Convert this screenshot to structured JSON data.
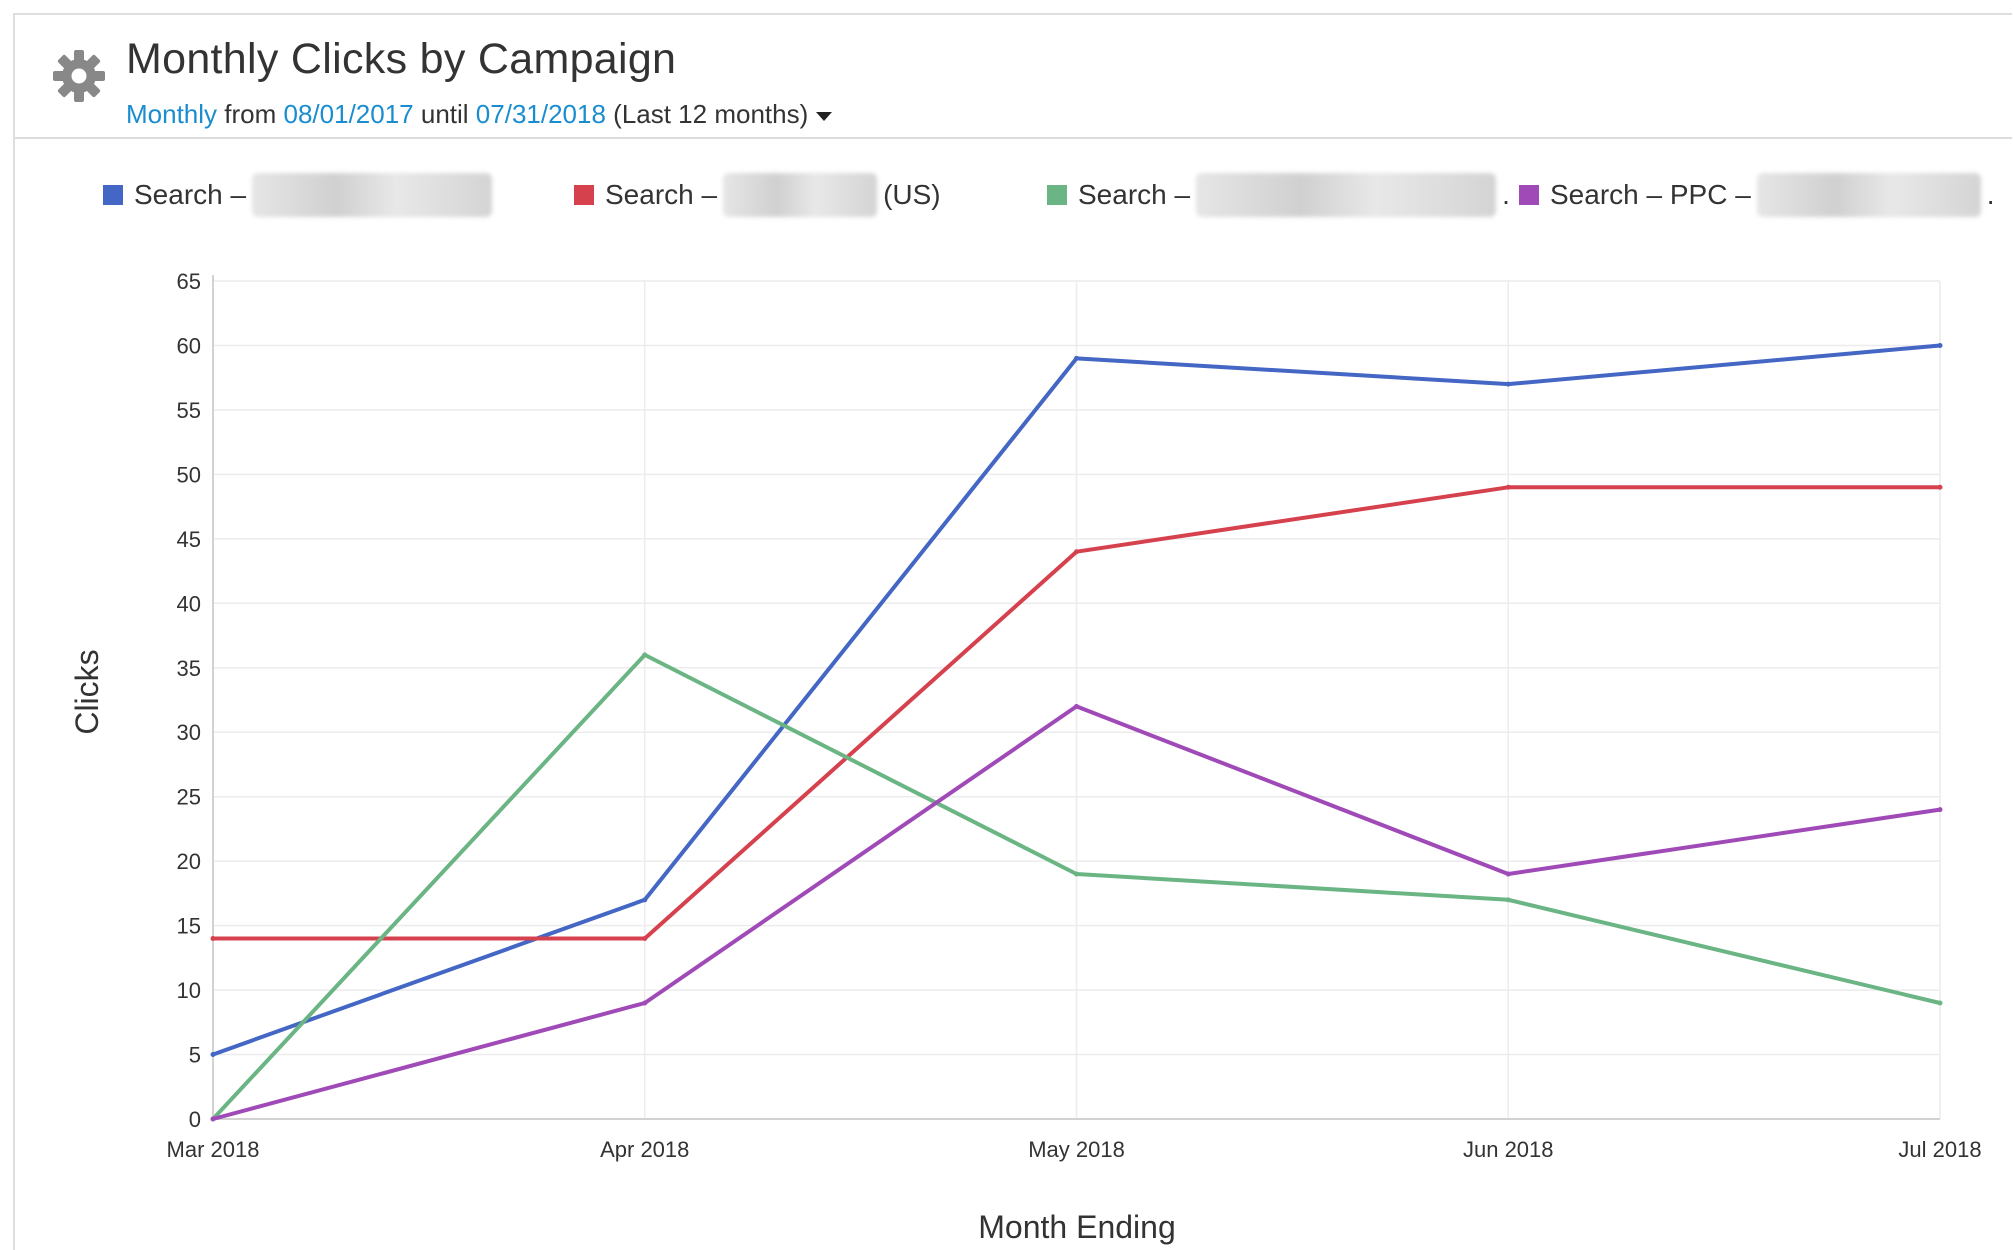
{
  "header": {
    "title": "Monthly Clicks by Campaign",
    "period_link": "Monthly",
    "from_text": " from ",
    "start_date": "08/01/2017",
    "until_text": " until ",
    "end_date": "07/31/2018",
    "range_label": " (Last 12 months)",
    "settings_icon": "gear-icon",
    "dropdown_icon": "caret-down-icon"
  },
  "legend": [
    {
      "prefix": "Search –",
      "suffix": "",
      "color": "#4466c4"
    },
    {
      "prefix": "Search –",
      "suffix": "(US)",
      "color": "#d6414e"
    },
    {
      "prefix": "Search –",
      "suffix": ".",
      "color": "#6ab583"
    },
    {
      "prefix": "Search – PPC –",
      "suffix": ".",
      "color": "#a04ab8"
    }
  ],
  "chart_data": {
    "type": "line",
    "xlabel": "Month Ending",
    "ylabel": "Clicks",
    "categories": [
      "Mar 2018",
      "Apr 2018",
      "May 2018",
      "Jun 2018",
      "Jul 2018"
    ],
    "ylim": [
      0,
      65
    ],
    "yticks": [
      0,
      5,
      10,
      15,
      20,
      25,
      30,
      35,
      40,
      45,
      50,
      55,
      60,
      65
    ],
    "grid": true,
    "legend_position": "top",
    "series": [
      {
        "values": [
          5,
          17,
          59,
          57,
          60
        ],
        "color": "#4466c4"
      },
      {
        "values": [
          14,
          14,
          44,
          49,
          49
        ],
        "color": "#d6414e"
      },
      {
        "values": [
          0,
          36,
          19,
          17,
          9
        ],
        "color": "#6ab583"
      },
      {
        "values": [
          0,
          9,
          32,
          19,
          24
        ],
        "color": "#a04ab8"
      }
    ]
  }
}
